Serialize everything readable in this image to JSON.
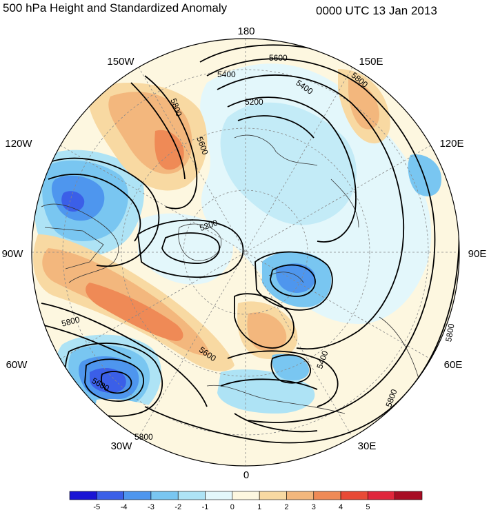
{
  "header": {
    "title": "500 hPa Height and Standardized Anomaly",
    "datetime": "0000 UTC 13 Jan 2013"
  },
  "map": {
    "projection": "north polar stereographic",
    "longitude_labels": {
      "top": "180",
      "top_left": "150W",
      "top_right": "150E",
      "upper_left": "120W",
      "upper_right": "120E",
      "left": "90W",
      "right": "90E",
      "lower_left": "60W",
      "lower_right": "60E",
      "bottom_left": "30W",
      "bottom_right": "30E",
      "bottom": "0"
    },
    "contour_labels": [
      {
        "id": "c5600-top",
        "text": "5600"
      },
      {
        "id": "c5800-ne",
        "text": "5800"
      },
      {
        "id": "c5400-top",
        "text": "5400"
      },
      {
        "id": "c5400-ne",
        "text": "5400"
      },
      {
        "id": "c5200-top",
        "text": "5200"
      },
      {
        "id": "c5800-gulf",
        "text": "5800"
      },
      {
        "id": "c5600-gulf",
        "text": "5600"
      },
      {
        "id": "c5200-green",
        "text": "5200"
      },
      {
        "id": "c5800-wa",
        "text": "5800"
      },
      {
        "id": "c5600-natl",
        "text": "5600"
      },
      {
        "id": "c5600-az",
        "text": "5600"
      },
      {
        "id": "c5400-eur",
        "text": "5400"
      },
      {
        "id": "c5800-e1",
        "text": "5800"
      },
      {
        "id": "c5800-e2",
        "text": "5800"
      },
      {
        "id": "c5800-bot",
        "text": "5800"
      }
    ],
    "colors": {
      "neg5": "#1a14d4",
      "neg4": "#3b5fe8",
      "neg3": "#4e96ee",
      "neg2": "#79c6f1",
      "neg1": "#aee3f5",
      "neg0": "#e3f7fb",
      "pos0": "#fdf7e0",
      "pos1": "#f8d9a2",
      "pos2": "#f3b77d",
      "pos3": "#ef8a56",
      "pos4": "#e84a36",
      "pos5": "#e0263c",
      "pos6": "#a70d24"
    }
  },
  "colorbar": {
    "colors": [
      "#1a14d4",
      "#3b5fe8",
      "#4e96ee",
      "#79c6f1",
      "#aee3f5",
      "#e3f7fb",
      "#fdf7e0",
      "#f8d9a2",
      "#f3b77d",
      "#ef8a56",
      "#e84a36",
      "#e0263c",
      "#a70d24"
    ],
    "tick_labels": [
      "-5",
      "-4",
      "-3",
      "-2",
      "-1",
      "0",
      "1",
      "2",
      "3",
      "4",
      "5"
    ]
  }
}
